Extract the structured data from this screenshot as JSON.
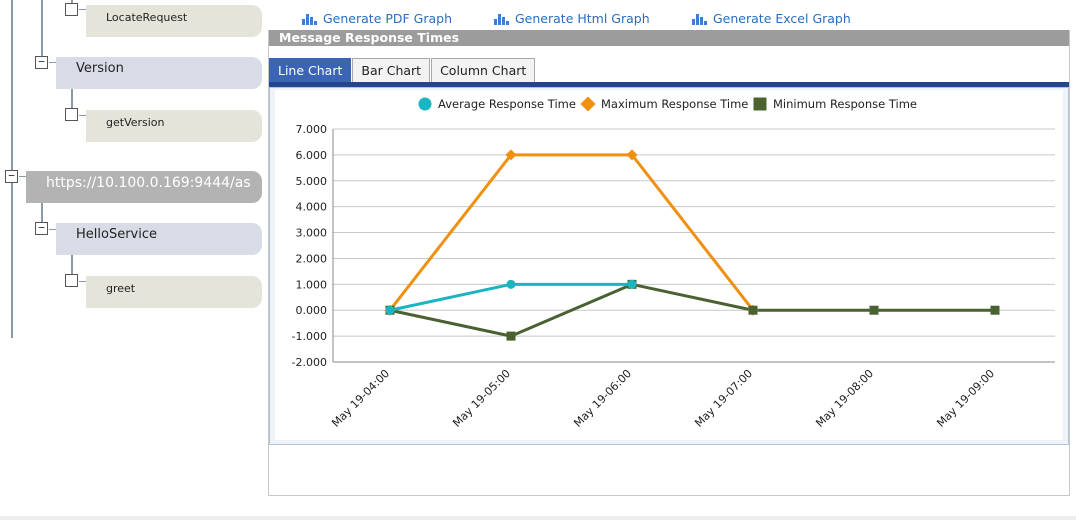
{
  "tree": {
    "services": [
      {
        "label": "Version",
        "operations": [
          "getVersion"
        ]
      }
    ],
    "operation_above": "LocateRequest",
    "endpoint": {
      "label": "https://10.100.0.169:9444/as",
      "service": {
        "label": "HelloService",
        "operations": [
          "greet"
        ]
      }
    },
    "toggle_symbol": "−"
  },
  "links": {
    "pdf": "Generate PDF Graph",
    "html": "Generate Html Graph",
    "excel": "Generate Excel Graph"
  },
  "panel": {
    "title": "Message Response Times",
    "tabs": [
      "Line Chart",
      "Bar Chart",
      "Column Chart"
    ],
    "active_tab": "Line Chart"
  },
  "chart_data": {
    "type": "line",
    "x": [
      "May 19-04:00",
      "May 19-05:00",
      "May 19-06:00",
      "May 19-07:00",
      "May 19-08:00",
      "May 19-09:00"
    ],
    "series": [
      {
        "name": "Average Response Time",
        "color": "#1bb5c1",
        "marker": "circle",
        "values": [
          0,
          1,
          1,
          null,
          null,
          null
        ]
      },
      {
        "name": "Maximum Response Time",
        "color": "#f0900f",
        "marker": "diamond",
        "values": [
          0,
          6,
          6,
          0,
          null,
          null
        ]
      },
      {
        "name": "Minimum Response Time",
        "color": "#4a6132",
        "marker": "square",
        "values": [
          0,
          -1,
          1,
          0,
          0,
          0
        ]
      }
    ],
    "ylim": [
      -2,
      7
    ],
    "yticks": [
      "7.000",
      "6.000",
      "5.000",
      "4.000",
      "3.000",
      "2.000",
      "1.000",
      "0.000",
      "-1.000",
      "-2.000"
    ],
    "grid": true,
    "legend": "top-center"
  }
}
